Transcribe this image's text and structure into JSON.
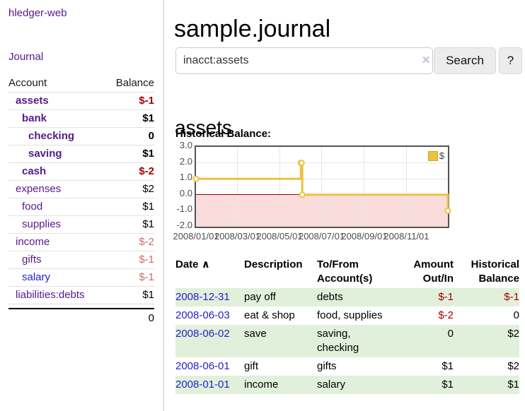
{
  "sidebar": {
    "brand": "hledger-web",
    "nav": [
      {
        "label": "Journal"
      }
    ],
    "accounts_table": {
      "headers": [
        "Account",
        "Balance"
      ],
      "rows": [
        {
          "name": "assets",
          "level": 1,
          "bold": true,
          "balance": "$-1",
          "balance_style": "neg"
        },
        {
          "name": "bank",
          "level": 2,
          "bold": true,
          "balance": "$1",
          "balance_style": "pos"
        },
        {
          "name": "checking",
          "level": 3,
          "bold": true,
          "balance": "0",
          "balance_style": "pos"
        },
        {
          "name": "saving",
          "level": 3,
          "bold": true,
          "balance": "$1",
          "balance_style": "pos"
        },
        {
          "name": "cash",
          "level": 2,
          "bold": true,
          "balance": "$-2",
          "balance_style": "neg"
        },
        {
          "name": "expenses",
          "level": 1,
          "bold": false,
          "balance": "$2",
          "balance_style": "pos"
        },
        {
          "name": "food",
          "level": 2,
          "bold": false,
          "balance": "$1",
          "balance_style": "pos"
        },
        {
          "name": "supplies",
          "level": 2,
          "bold": false,
          "balance": "$1",
          "balance_style": "pos"
        },
        {
          "name": "income",
          "level": 1,
          "bold": false,
          "balance": "$-2",
          "balance_style": "rosy"
        },
        {
          "name": "gifts",
          "level": 2,
          "bold": false,
          "balance": "$-1",
          "balance_style": "rosy"
        },
        {
          "name": "salary",
          "level": 2,
          "bold": false,
          "balance": "$-1",
          "balance_style": "rosy",
          "link_color": "blue"
        },
        {
          "name": "liabilities:debts",
          "level": 1,
          "bold": false,
          "balance": "$1",
          "balance_style": "pos"
        }
      ],
      "total": "0"
    }
  },
  "main": {
    "title": "sample.journal",
    "account_heading": "assets",
    "chart_label": "Historical Balance:"
  },
  "search": {
    "value": "inacct:assets",
    "clear_icon": "×",
    "button_label": "Search",
    "help_label": "?"
  },
  "chart_data": {
    "type": "line",
    "step": true,
    "title": "Historical Balance:",
    "x_range": [
      "2008-01-01",
      "2008-12-31"
    ],
    "ylim": [
      -2,
      3
    ],
    "series": [
      {
        "name": "$",
        "color": "#edc240",
        "points": [
          [
            "2008-01-01",
            1
          ],
          [
            "2008-06-01",
            2
          ],
          [
            "2008-06-02",
            2
          ],
          [
            "2008-06-03",
            0
          ],
          [
            "2008-12-31",
            -1
          ]
        ]
      }
    ],
    "x_ticks": [
      {
        "date": "2008-01-01",
        "label": "2008/01/01"
      },
      {
        "date": "2008-03-01",
        "label": "2008/03/01"
      },
      {
        "date": "2008-05-01",
        "label": "2008/05/01"
      },
      {
        "date": "2008-07-01",
        "label": "2008/07/01"
      },
      {
        "date": "2008-09-01",
        "label": "2008/09/01"
      },
      {
        "date": "2008-11-01",
        "label": "2008/11/01"
      }
    ],
    "y_ticks": [
      {
        "value": 3,
        "label": "3.0"
      },
      {
        "value": 2,
        "label": "2.0"
      },
      {
        "value": 1,
        "label": "1.0"
      },
      {
        "value": 0,
        "label": "0.0"
      },
      {
        "value": -1,
        "label": "-1.0"
      },
      {
        "value": -2,
        "label": "-2.0"
      }
    ],
    "legend": {
      "label": "$",
      "position": "top-right"
    },
    "negative_region": true,
    "grid": true
  },
  "register": {
    "headers": [
      {
        "label": "Date",
        "align": "left",
        "sorted_asc": true
      },
      {
        "label": "Description",
        "align": "left"
      },
      {
        "label": "To/From Account(s)",
        "align": "left"
      },
      {
        "label": "Amount Out/In",
        "align": "right"
      },
      {
        "label": "Historical Balance",
        "align": "right"
      }
    ],
    "sort_icon": "∧",
    "rows": [
      {
        "date": "2008-12-31",
        "description": "pay off",
        "accounts": "debts",
        "amount": "$-1",
        "amount_style": "neg",
        "balance": "$-1",
        "balance_style": "neg"
      },
      {
        "date": "2008-06-03",
        "description": "eat & shop",
        "accounts": "food, supplies",
        "amount": "$-2",
        "amount_style": "neg",
        "balance": "0",
        "balance_style": "pos"
      },
      {
        "date": "2008-06-02",
        "description": "save",
        "accounts": "saving, checking",
        "amount": "0",
        "amount_style": "pos",
        "balance": "$2",
        "balance_style": "pos"
      },
      {
        "date": "2008-06-01",
        "description": "gift",
        "accounts": "gifts",
        "amount": "$1",
        "amount_style": "pos",
        "balance": "$2",
        "balance_style": "pos"
      },
      {
        "date": "2008-01-01",
        "description": "income",
        "accounts": "salary",
        "amount": "$1",
        "amount_style": "pos",
        "balance": "$1",
        "balance_style": "pos"
      }
    ]
  },
  "colors": {
    "link_purple": "#551a8b",
    "link_blue": "#2222cc",
    "negative_dark": "#a40000",
    "negative_soft": "#c4706c",
    "row_stripe_green": "#e1f0da",
    "series_gold": "#edc240",
    "negative_region_pink": "#fbdcdc",
    "zero_line_red": "#8b0000",
    "chart_border": "#545454",
    "button_bg": "#ececec"
  }
}
